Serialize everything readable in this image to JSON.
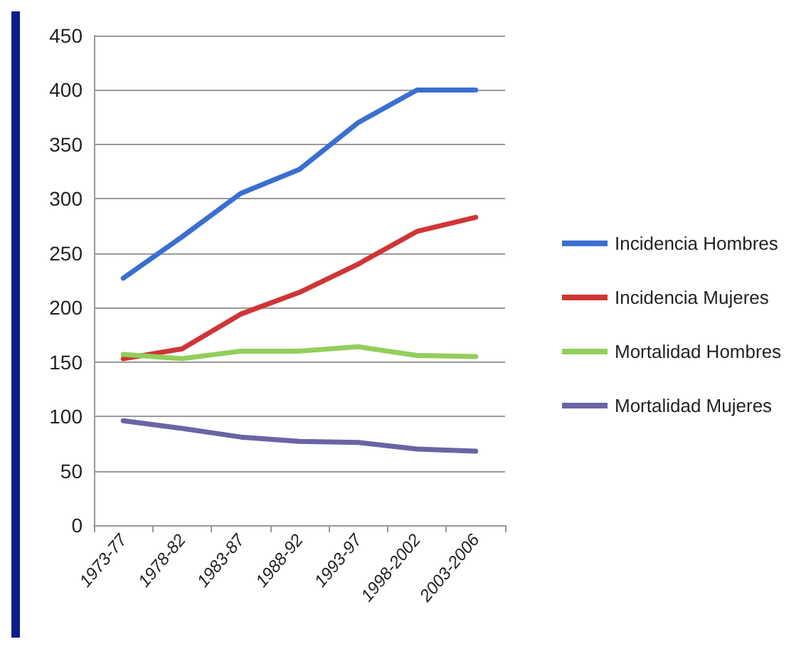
{
  "chart_data": {
    "type": "line",
    "categories": [
      "1973-77",
      "1978-82",
      "1983-87",
      "1988-92",
      "1993-97",
      "1998-2002",
      "2003-2006"
    ],
    "series": [
      {
        "name": "Incidencia Hombres",
        "color": "#3a6fd0",
        "values": [
          227,
          265,
          305,
          327,
          370,
          400,
          400
        ]
      },
      {
        "name": "Incidencia Mujeres",
        "color": "#d03535",
        "values": [
          153,
          162,
          194,
          214,
          240,
          270,
          283
        ]
      },
      {
        "name": "Mortalidad Hombres",
        "color": "#92cf5a",
        "values": [
          157,
          153,
          160,
          160,
          164,
          156,
          155
        ]
      },
      {
        "name": "Mortalidad Mujeres",
        "color": "#6a64a6",
        "values": [
          96,
          89,
          81,
          77,
          76,
          70,
          68
        ]
      }
    ],
    "ylim": [
      0,
      450
    ],
    "yticks": [
      0,
      50,
      100,
      150,
      200,
      250,
      300,
      350,
      400,
      450
    ],
    "grid": "y",
    "legend": "right",
    "marker": "none",
    "line_style": "solid"
  }
}
